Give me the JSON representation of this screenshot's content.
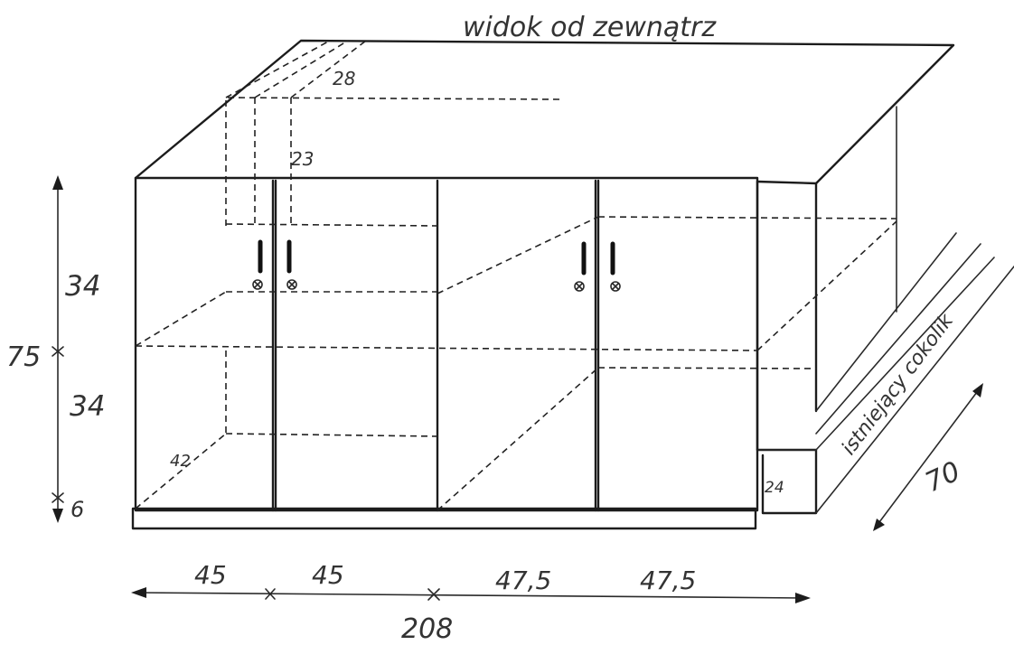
{
  "title": "widok od zewnątrz",
  "dimensions": {
    "depth_top": "28",
    "inner_height": "23",
    "shelf_depth": "42",
    "left_upper": "34",
    "left_total": "75",
    "left_lower": "34",
    "left_base": "6",
    "plinth_height": "24",
    "side_depth": "70",
    "bottom_a": "45",
    "bottom_b": "45",
    "bottom_c": "47,5",
    "bottom_d": "47,5",
    "bottom_total": "208"
  },
  "plinth_label": "istniejący cokolik"
}
